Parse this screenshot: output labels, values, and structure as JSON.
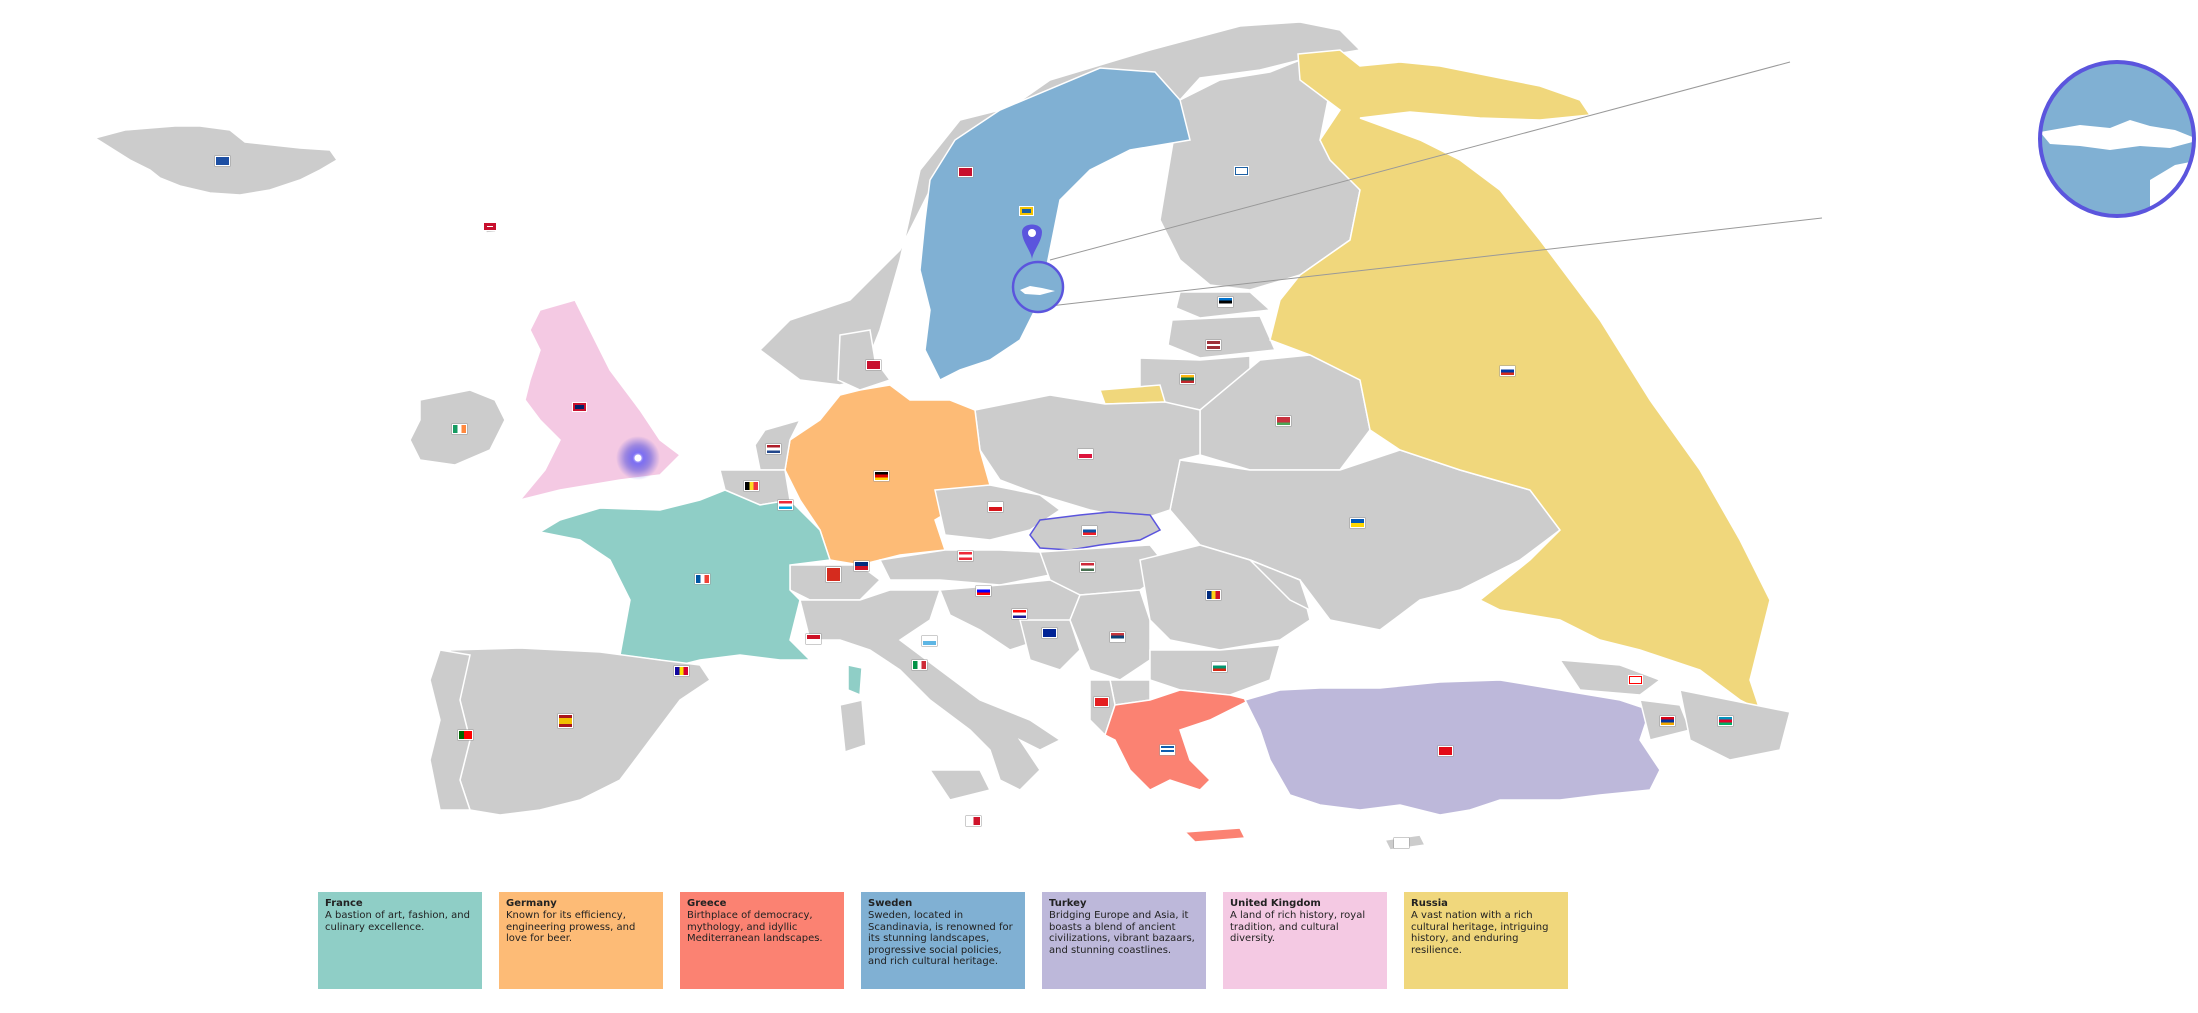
{
  "colors": {
    "land": "#cccccc",
    "france": "#8fcec6",
    "germany": "#fdbb76",
    "greece": "#fb8272",
    "sweden": "#80b0d3",
    "turkey": "#bdb8da",
    "united_kingdom": "#f4c9e3",
    "russia": "#f0d77c",
    "accent": "#5b55dd"
  },
  "legend": [
    {
      "title": "France",
      "text": "A bastion of art, fashion, and culinary excellence.",
      "color": "#8fcec6"
    },
    {
      "title": "Germany",
      "text": "Known for its efficiency, engineering prowess, and love for beer.",
      "color": "#fdbb76"
    },
    {
      "title": "Greece",
      "text": "Birthplace of democracy, mythology, and idyllic Mediterranean landscapes.",
      "color": "#fb8272"
    },
    {
      "title": "Sweden",
      "text": "Sweden, located in Scandinavia, is renowned for its stunning landscapes, progressive social policies, and rich cultural heritage.",
      "color": "#80b0d3"
    },
    {
      "title": "Turkey",
      "text": "Bridging Europe and Asia, it boasts a blend of ancient civilizations, vibrant bazaars, and stunning coastlines.",
      "color": "#bdb8da"
    },
    {
      "title": "United Kingdom",
      "text": "A land of rich history, royal tradition, and cultural diversity.",
      "color": "#f4c9e3"
    },
    {
      "title": "Russia",
      "text": "A vast nation with a rich cultural heritage, intriguing history, and enduring resilience.",
      "color": "#f0d77c"
    }
  ],
  "icons": {
    "marker": "location-pin-icon",
    "pulse": "pulse-point-icon",
    "zoom": "zoom-lens-icon"
  }
}
